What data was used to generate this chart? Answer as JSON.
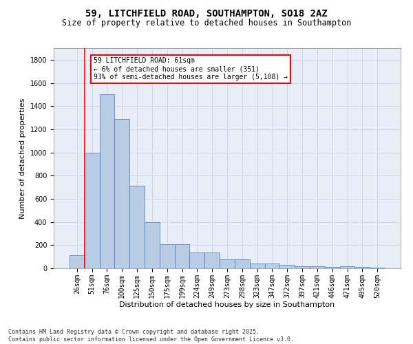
{
  "title": "59, LITCHFIELD ROAD, SOUTHAMPTON, SO18 2AZ",
  "subtitle": "Size of property relative to detached houses in Southampton",
  "xlabel": "Distribution of detached houses by size in Southampton",
  "ylabel": "Number of detached properties",
  "categories": [
    "26sqm",
    "51sqm",
    "76sqm",
    "100sqm",
    "125sqm",
    "150sqm",
    "175sqm",
    "199sqm",
    "224sqm",
    "249sqm",
    "273sqm",
    "298sqm",
    "323sqm",
    "347sqm",
    "372sqm",
    "397sqm",
    "421sqm",
    "446sqm",
    "471sqm",
    "495sqm",
    "520sqm"
  ],
  "values": [
    110,
    1000,
    1500,
    1290,
    710,
    400,
    210,
    210,
    135,
    135,
    75,
    75,
    40,
    40,
    30,
    18,
    15,
    10,
    15,
    10,
    5
  ],
  "bar_color": "#b8cce4",
  "bar_edge_color": "#4472c4",
  "vline_x": 1.0,
  "vline_color": "red",
  "annotation_text": "59 LITCHFIELD ROAD: 61sqm\n← 6% of detached houses are smaller (351)\n93% of semi-detached houses are larger (5,108) →",
  "annotation_box_color": "red",
  "annotation_facecolor": "white",
  "ylim": [
    0,
    1900
  ],
  "yticks": [
    0,
    200,
    400,
    600,
    800,
    1000,
    1200,
    1400,
    1600,
    1800
  ],
  "grid_color": "#d0d8e8",
  "background_color": "#e8eef8",
  "footer_text": "Contains HM Land Registry data © Crown copyright and database right 2025.\nContains public sector information licensed under the Open Government Licence v3.0.",
  "title_fontsize": 10,
  "subtitle_fontsize": 8.5,
  "xlabel_fontsize": 8,
  "ylabel_fontsize": 8,
  "tick_fontsize": 7,
  "annotation_fontsize": 7,
  "footer_fontsize": 6
}
